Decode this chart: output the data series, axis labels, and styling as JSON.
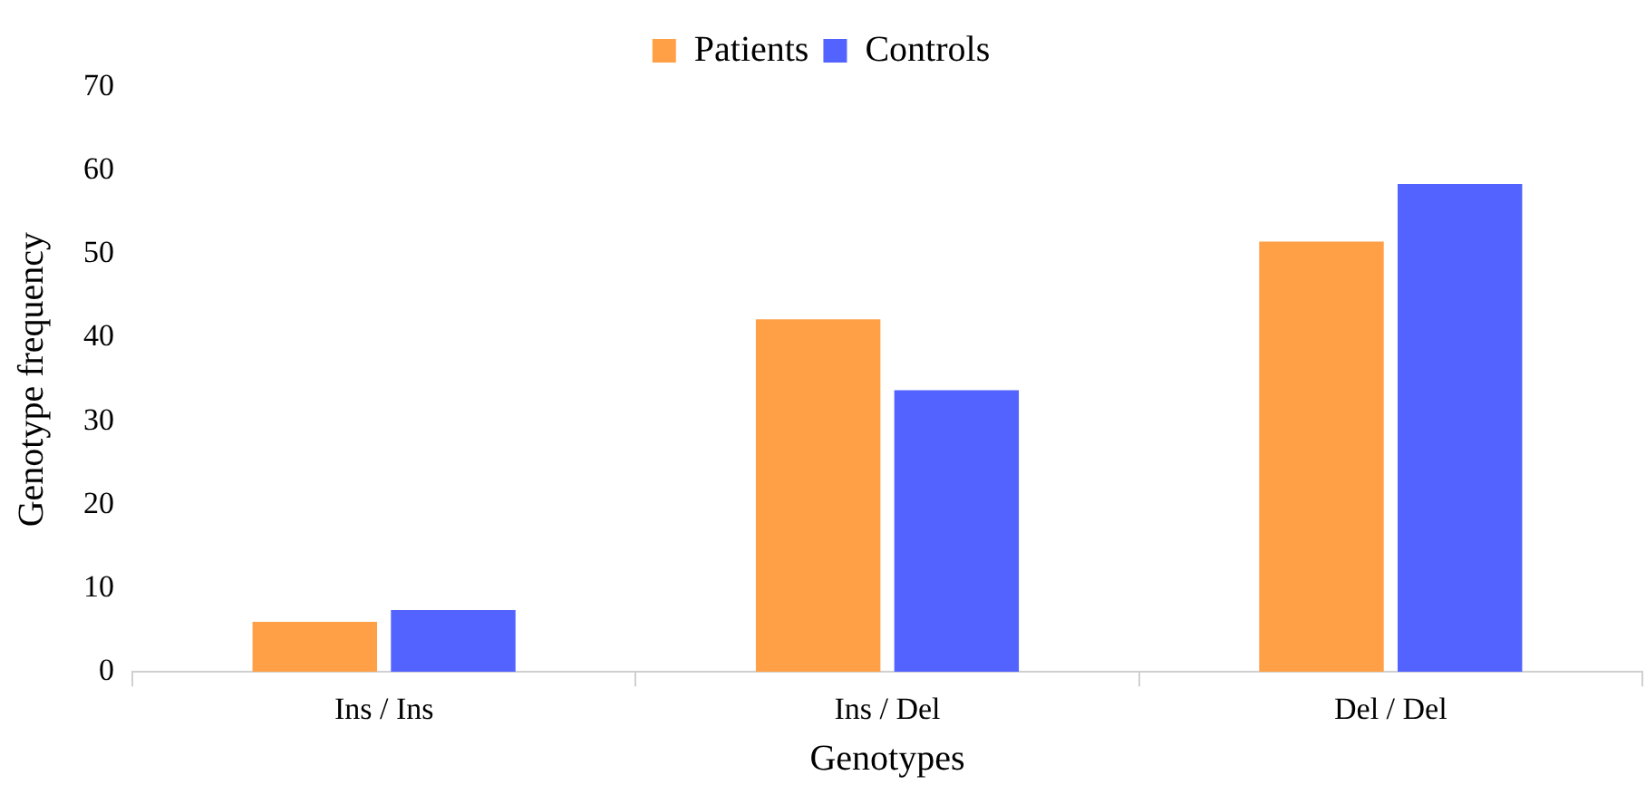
{
  "chart_data": {
    "type": "bar",
    "xlabel": "Genotypes",
    "ylabel": "Genotype frequency",
    "categories": [
      "Ins / Ins",
      "Ins / Del",
      "Del / Del"
    ],
    "series": [
      {
        "name": "Patients",
        "color": "#ffa046",
        "values": [
          6,
          42.2,
          51.5
        ]
      },
      {
        "name": "Controls",
        "color": "#5263ff",
        "values": [
          7.4,
          33.7,
          58.4
        ]
      }
    ],
    "ylim": [
      0,
      70
    ],
    "yticks": [
      0,
      10,
      20,
      30,
      40,
      50,
      60,
      70
    ],
    "grid": false,
    "legend": "top"
  }
}
